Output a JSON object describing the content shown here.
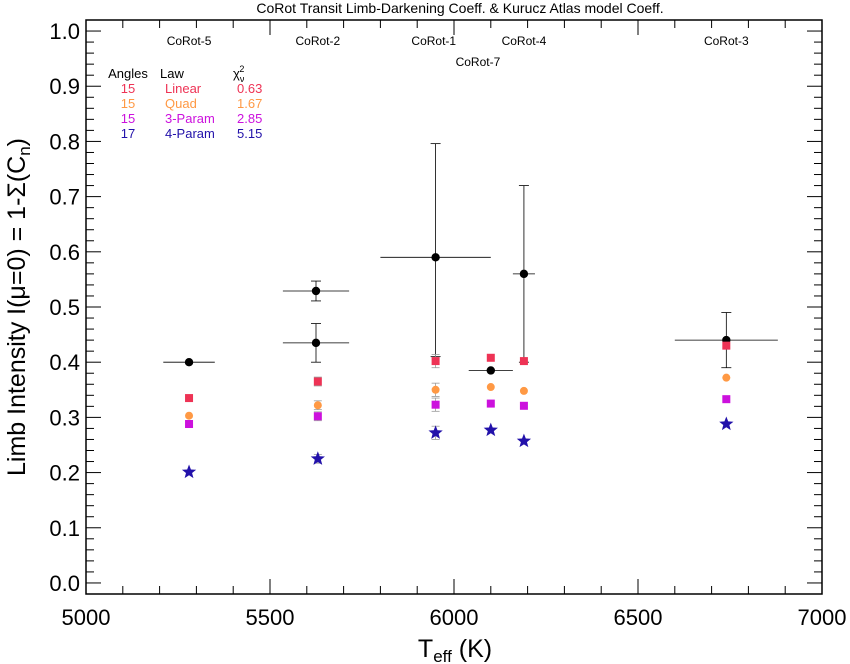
{
  "chart_data": {
    "type": "scatter",
    "title": "CoRot Transit Limb-Darkening Coeff. & Kurucz Atlas model Coeff.",
    "xlabel": "T",
    "xlabel_sub": "eff",
    "xlabel_unit": " (K)",
    "ylabel_main": "Limb Intensity  I(μ=0) = 1-Σ(C",
    "ylabel_sub": "n",
    "ylabel_close": ")",
    "xlim": [
      5000,
      7000
    ],
    "ylim": [
      -0.02,
      1.02
    ],
    "xticks": [
      5000,
      5500,
      6000,
      6500,
      7000
    ],
    "yticks": [
      0.0,
      0.1,
      0.2,
      0.3,
      0.4,
      0.5,
      0.6,
      0.7,
      0.8,
      0.9,
      1.0
    ],
    "ytick_labels": [
      "0.0",
      "0.1",
      "0.2",
      "0.3",
      "0.4",
      "0.5",
      "0.6",
      "0.7",
      "0.8",
      "0.9",
      "1.0"
    ],
    "grid": false,
    "star_labels": [
      {
        "text": "CoRot-5",
        "x": 5280,
        "y": 0.975
      },
      {
        "text": "CoRot-2",
        "x": 5630,
        "y": 0.975
      },
      {
        "text": "CoRot-1",
        "x": 5945,
        "y": 0.975
      },
      {
        "text": "CoRot-4",
        "x": 6190,
        "y": 0.975
      },
      {
        "text": "CoRot-7",
        "x": 6065,
        "y": 0.937
      },
      {
        "text": "CoRot-3",
        "x": 6740,
        "y": 0.975
      }
    ],
    "legend": {
      "position": "top-left",
      "headers": {
        "angles": "Angles",
        "law": "Law",
        "chi": "χ",
        "chi_sub": "ν",
        "chi_sup": "2"
      },
      "rows": [
        {
          "angles": "15",
          "law": "Linear",
          "chi2": "0.63",
          "color": "#ee3355"
        },
        {
          "angles": "15",
          "law": "Quad",
          "chi2": "1.67",
          "color": "#ff9944"
        },
        {
          "angles": "15",
          "law": "3-Param",
          "chi2": "2.85",
          "color": "#cc11dd"
        },
        {
          "angles": "17",
          "law": "4-Param",
          "chi2": "5.15",
          "color": "#2211aa"
        }
      ]
    },
    "observed": [
      {
        "star": "CoRot-5",
        "x": 5280,
        "y": 0.4,
        "xerr": 70,
        "yerr": [
          0.0,
          0.0
        ]
      },
      {
        "star": "CoRot-2",
        "x": 5625,
        "y": 0.529,
        "xerr": 90,
        "yerr": [
          0.018,
          0.018
        ]
      },
      {
        "star": "CoRot-2",
        "x": 5625,
        "y": 0.435,
        "xerr": 90,
        "yerr": [
          0.035,
          0.035
        ]
      },
      {
        "star": "CoRot-1",
        "x": 5950,
        "y": 0.59,
        "xerr": 150,
        "yerr": [
          0.18,
          0.206
        ]
      },
      {
        "star": "CoRot-7",
        "x": 6100,
        "y": 0.385,
        "xerr": 60,
        "yerr": [
          0.0,
          0.0
        ]
      },
      {
        "star": "CoRot-4",
        "x": 6190,
        "y": 0.56,
        "xerr": 30,
        "yerr": [
          0.16,
          0.16
        ]
      },
      {
        "star": "CoRot-3",
        "x": 6740,
        "y": 0.44,
        "xerr": 140,
        "yerr": [
          0.05,
          0.05
        ]
      }
    ],
    "series": [
      {
        "name": "Linear",
        "marker": "square",
        "color": "#ee3355",
        "points": [
          [
            5280,
            0.335
          ],
          [
            5630,
            0.365
          ],
          [
            5950,
            0.402
          ],
          [
            6100,
            0.408
          ],
          [
            6190,
            0.402
          ],
          [
            6740,
            0.43
          ]
        ],
        "errs": [
          0.0,
          0.008,
          0.012,
          0.0,
          0.0,
          0.0
        ]
      },
      {
        "name": "Quad",
        "marker": "circle",
        "color": "#ff9944",
        "points": [
          [
            5280,
            0.303
          ],
          [
            5630,
            0.322
          ],
          [
            5950,
            0.35
          ],
          [
            6100,
            0.355
          ],
          [
            6190,
            0.348
          ],
          [
            6740,
            0.372
          ]
        ],
        "errs": [
          0.0,
          0.008,
          0.012,
          0.0,
          0.0,
          0.0
        ]
      },
      {
        "name": "3-Param",
        "marker": "square",
        "color": "#cc11dd",
        "points": [
          [
            5280,
            0.288
          ],
          [
            5630,
            0.302
          ],
          [
            5950,
            0.323
          ],
          [
            6100,
            0.325
          ],
          [
            6190,
            0.321
          ],
          [
            6740,
            0.333
          ]
        ],
        "errs": [
          0.0,
          0.008,
          0.012,
          0.0,
          0.0,
          0.0
        ]
      },
      {
        "name": "4-Param",
        "marker": "star",
        "color": "#2211aa",
        "points": [
          [
            5280,
            0.201
          ],
          [
            5630,
            0.225
          ],
          [
            5950,
            0.272
          ],
          [
            6100,
            0.277
          ],
          [
            6190,
            0.257
          ],
          [
            6740,
            0.288
          ]
        ],
        "errs": [
          0.0,
          0.008,
          0.012,
          0.0,
          0.0,
          0.0
        ]
      }
    ]
  }
}
